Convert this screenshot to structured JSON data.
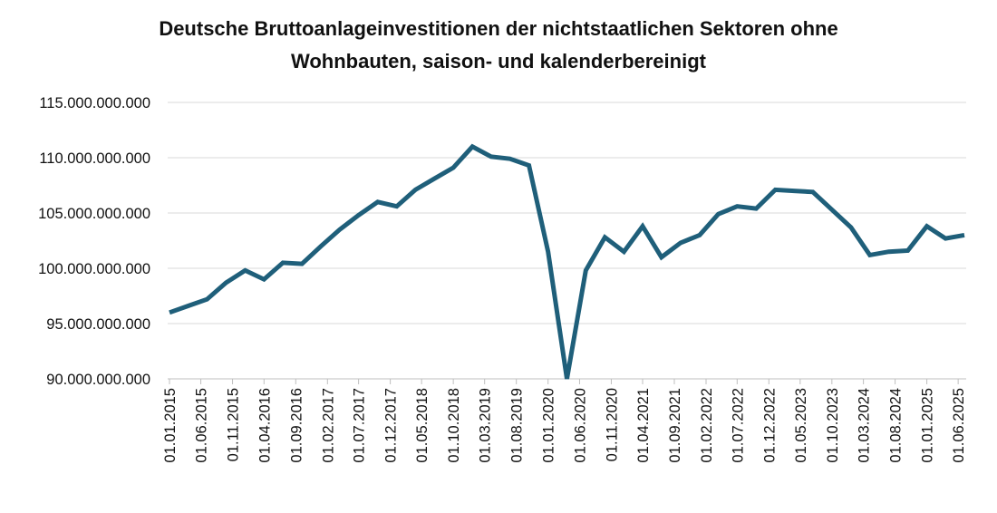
{
  "chart_data": {
    "type": "line",
    "title_line1": "Deutsche Bruttoanlageinvestitionen der nichtstaatlichen Sektoren ohne",
    "title_line2": "Wohnbauten, saison- und kalenderbereinigt",
    "xlabel": "",
    "ylabel": "",
    "ylim": [
      90000000000,
      115000000000
    ],
    "y_ticks": [
      {
        "value": 90000000000,
        "label": "90.000.000.000"
      },
      {
        "value": 95000000000,
        "label": "95.000.000.000"
      },
      {
        "value": 100000000000,
        "label": "100.000.000.000"
      },
      {
        "value": 105000000000,
        "label": "105.000.000.000"
      },
      {
        "value": 110000000000,
        "label": "110.000.000.000"
      },
      {
        "value": 115000000000,
        "label": "115.000.000.000"
      }
    ],
    "x_ticks": [
      "01.01.2015",
      "01.06.2015",
      "01.11.2015",
      "01.04.2016",
      "01.09.2016",
      "01.02.2017",
      "01.07.2017",
      "01.12.2017",
      "01.05.2018",
      "01.10.2018",
      "01.03.2019",
      "01.08.2019",
      "01.01.2020",
      "01.06.2020",
      "01.11.2020",
      "01.04.2021",
      "01.09.2021",
      "01.02.2022",
      "01.07.2022",
      "01.12.2022",
      "01.05.2023",
      "01.10.2023",
      "01.03.2024",
      "01.08.2024",
      "01.01.2025",
      "01.06.2025"
    ],
    "grid": true,
    "line_color": "#1f5f7a",
    "series": [
      {
        "points": [
          {
            "x": "2015-01-01",
            "y": 96000000000
          },
          {
            "x": "2015-04-01",
            "y": 96600000000
          },
          {
            "x": "2015-07-01",
            "y": 97200000000
          },
          {
            "x": "2015-10-01",
            "y": 98700000000
          },
          {
            "x": "2016-01-01",
            "y": 99800000000
          },
          {
            "x": "2016-04-01",
            "y": 99000000000
          },
          {
            "x": "2016-07-01",
            "y": 100500000000
          },
          {
            "x": "2016-10-01",
            "y": 100400000000
          },
          {
            "x": "2017-01-01",
            "y": 102000000000
          },
          {
            "x": "2017-04-01",
            "y": 103500000000
          },
          {
            "x": "2017-07-01",
            "y": 104800000000
          },
          {
            "x": "2017-10-01",
            "y": 106000000000
          },
          {
            "x": "2018-01-01",
            "y": 105600000000
          },
          {
            "x": "2018-04-01",
            "y": 107100000000
          },
          {
            "x": "2018-07-01",
            "y": 108100000000
          },
          {
            "x": "2018-10-01",
            "y": 109100000000
          },
          {
            "x": "2019-01-01",
            "y": 111000000000
          },
          {
            "x": "2019-04-01",
            "y": 110100000000
          },
          {
            "x": "2019-07-01",
            "y": 109900000000
          },
          {
            "x": "2019-10-01",
            "y": 109300000000
          },
          {
            "x": "2020-01-01",
            "y": 101500000000
          },
          {
            "x": "2020-04-01",
            "y": 90000000000
          },
          {
            "x": "2020-07-01",
            "y": 99800000000
          },
          {
            "x": "2020-10-01",
            "y": 102800000000
          },
          {
            "x": "2021-01-01",
            "y": 101500000000
          },
          {
            "x": "2021-04-01",
            "y": 103800000000
          },
          {
            "x": "2021-07-01",
            "y": 101000000000
          },
          {
            "x": "2021-10-01",
            "y": 102300000000
          },
          {
            "x": "2022-01-01",
            "y": 103000000000
          },
          {
            "x": "2022-04-01",
            "y": 104900000000
          },
          {
            "x": "2022-07-01",
            "y": 105600000000
          },
          {
            "x": "2022-10-01",
            "y": 105400000000
          },
          {
            "x": "2023-01-01",
            "y": 107100000000
          },
          {
            "x": "2023-04-01",
            "y": 107000000000
          },
          {
            "x": "2023-07-01",
            "y": 106900000000
          },
          {
            "x": "2023-10-01",
            "y": 105300000000
          },
          {
            "x": "2024-01-01",
            "y": 103700000000
          },
          {
            "x": "2024-04-01",
            "y": 101200000000
          },
          {
            "x": "2024-07-01",
            "y": 101500000000
          },
          {
            "x": "2024-10-01",
            "y": 101600000000
          },
          {
            "x": "2025-01-01",
            "y": 103800000000
          },
          {
            "x": "2025-04-01",
            "y": 102700000000
          },
          {
            "x": "2025-07-01",
            "y": 103000000000
          }
        ]
      }
    ]
  }
}
